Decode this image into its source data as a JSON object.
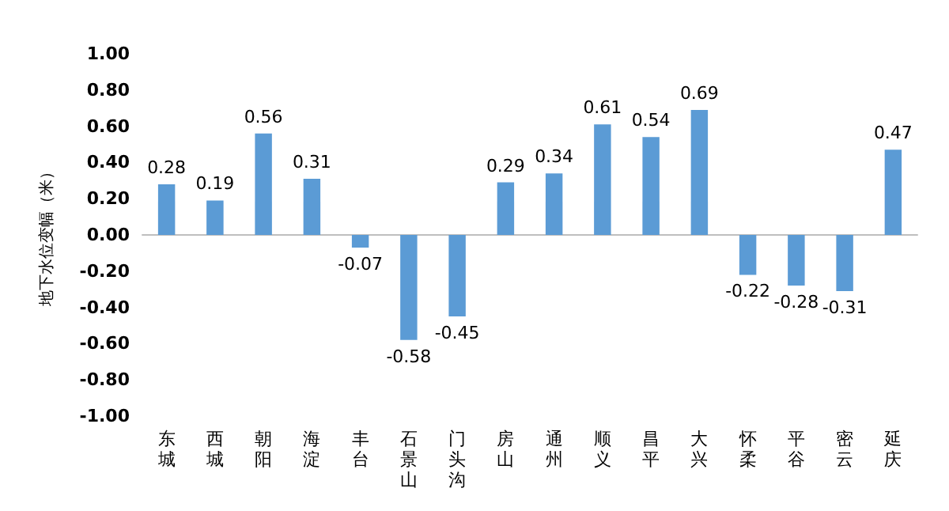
{
  "chart_data": {
    "type": "bar",
    "ylabel": "地下水位变幅（米）",
    "categories": [
      "东城",
      "西城",
      "朝阳",
      "海淀",
      "丰台",
      "石景山",
      "门头沟",
      "房山",
      "通州",
      "顺义",
      "昌平",
      "大兴",
      "怀柔",
      "平谷",
      "密云",
      "延庆"
    ],
    "values": [
      0.28,
      0.19,
      0.56,
      0.31,
      -0.07,
      -0.58,
      -0.45,
      0.29,
      0.34,
      0.61,
      0.54,
      0.69,
      -0.22,
      -0.28,
      -0.31,
      0.47
    ],
    "color": "#5b9bd5",
    "ylim": [
      -1,
      1
    ],
    "yticks": [
      {
        "value": -1,
        "label": "-1.00"
      },
      {
        "value": -0.8,
        "label": "-0.80"
      },
      {
        "value": -0.6,
        "label": "-0.60"
      },
      {
        "value": -0.4,
        "label": "-0.40"
      },
      {
        "value": -0.2,
        "label": "-0.20"
      },
      {
        "value": 0,
        "label": "0.00"
      },
      {
        "value": 0.2,
        "label": "0.20"
      },
      {
        "value": 0.4,
        "label": "0.40"
      },
      {
        "value": 0.6,
        "label": "0.60"
      },
      {
        "value": 0.8,
        "label": "0.80"
      },
      {
        "value": 1,
        "label": "1.00"
      }
    ],
    "data_labels": true
  }
}
